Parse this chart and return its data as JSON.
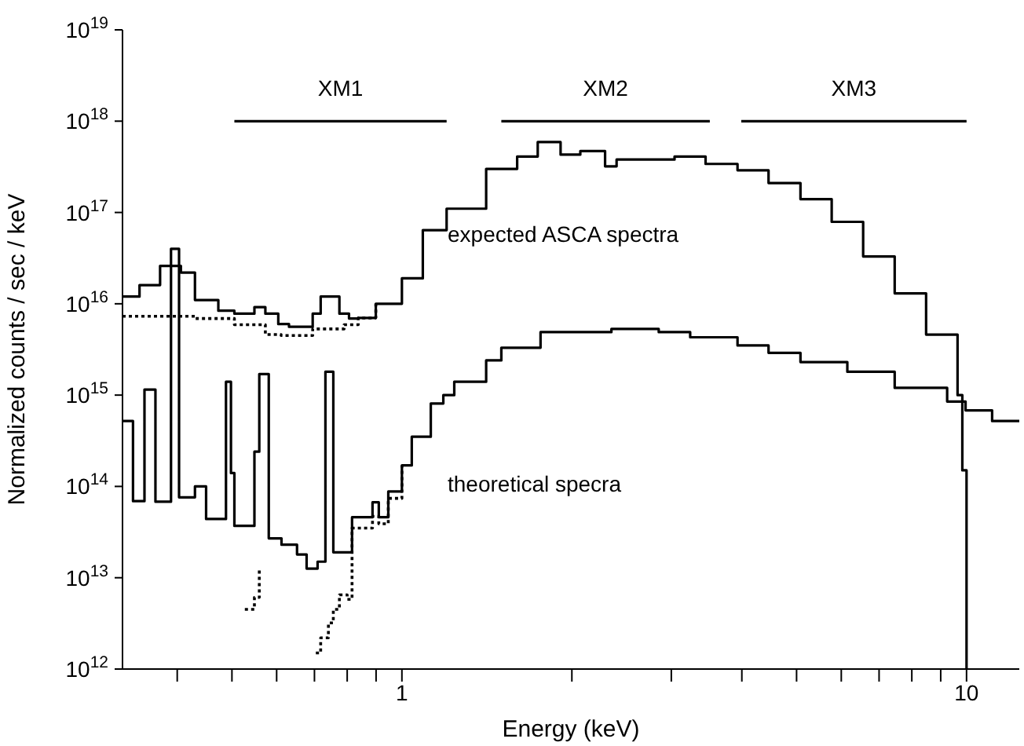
{
  "chart_data": {
    "type": "step",
    "xlabel": "Energy (keV)",
    "ylabel": "Normalized counts / sec / keV",
    "log": "xy",
    "marker": "none",
    "xlim": [
      0.32,
      12.4
    ],
    "ylim": [
      1000000000000.0,
      1e+19
    ],
    "xticks": [
      {
        "value": 0.4,
        "label": null
      },
      {
        "value": 0.5,
        "label": null
      },
      {
        "value": 0.6,
        "label": null
      },
      {
        "value": 0.7,
        "label": null
      },
      {
        "value": 0.8,
        "label": null
      },
      {
        "value": 0.9,
        "label": null
      },
      1,
      {
        "value": 2,
        "label": null
      },
      {
        "value": 3,
        "label": null
      },
      {
        "value": 4,
        "label": null
      },
      {
        "value": 5,
        "label": null
      },
      {
        "value": 6,
        "label": null
      },
      {
        "value": 7,
        "label": null
      },
      {
        "value": 8,
        "label": null
      },
      {
        "value": 9,
        "label": null
      },
      10
    ],
    "yticks": [
      {
        "value": 1000000000000.0,
        "label": "10$^{12}$"
      },
      {
        "value": 10000000000000.0,
        "label": "10$^{13}$"
      },
      {
        "value": 100000000000000.0,
        "label": "10$^{14}$"
      },
      {
        "value": 1000000000000000.0,
        "label": "10$^{15}$"
      },
      {
        "value": 1e+16,
        "label": "10$^{16}$"
      },
      {
        "value": 1e+17,
        "label": "10$^{17}$"
      },
      {
        "value": 1e+18,
        "label": "10$^{18}$"
      },
      {
        "value": 1e+19,
        "label": "10$^{19}$"
      }
    ],
    "series": [
      {
        "color": "#000000",
        "line_style": "solid",
        "x": [
          0.32,
          0.343,
          0.373,
          0.406,
          0.43,
          0.473,
          0.505,
          0.548,
          0.573,
          0.604,
          0.631,
          0.695,
          0.718,
          0.775,
          0.806,
          0.837,
          0.899,
          1.0,
          1.089,
          1.2,
          1.41,
          1.6,
          1.74,
          1.91,
          2.07,
          2.29,
          2.4,
          3.04,
          3.45,
          3.93,
          4.46,
          5.08,
          5.77,
          6.56,
          7.46,
          8.48,
          9.64,
          9.83,
          10
        ],
        "values": [
          1.2e+16,
          1.6e+16,
          2.6e+16,
          2.2e+16,
          1.1e+16,
          8400000000000000.0,
          7800000000000000.0,
          9200000000000000.0,
          7800000000000000.0,
          6000000000000000.0,
          5600000000000000.0,
          7800000000000000.0,
          1.2e+16,
          7800000000000000.0,
          6900000000000000.0,
          7000000000000000.0,
          1e+16,
          1.9e+16,
          6.4e+16,
          1.1e+17,
          3e+17,
          4.1e+17,
          5.9e+17,
          4.3e+17,
          4.7e+17,
          3.2e+17,
          3.8e+17,
          4.1e+17,
          3.4e+17,
          2.9e+17,
          2.1e+17,
          1.4e+17,
          7.9e+16,
          3.3e+16,
          1.3e+16,
          4600000000000000.0,
          1000000000000000.0,
          150000000000000.0,
          1000000000000.0
        ]
      },
      {
        "color": "#000000",
        "line_style": "dotted",
        "x": [
          0.32,
          0.43,
          0.505,
          0.573,
          0.611,
          0.695,
          0.79,
          0.837,
          0.899
        ],
        "values": [
          7300000000000000.0,
          6900000000000000.0,
          5900000000000000.0,
          4600000000000000.0,
          4500000000000000.0,
          5300000000000000.0,
          5900000000000000.0,
          7000000000000000.0,
          1e+16
        ]
      },
      {
        "color": "#000000",
        "line_style": "solid",
        "x": [
          0.32,
          0.334,
          0.35,
          0.366,
          0.39,
          0.403,
          0.43,
          0.45,
          0.488,
          0.498,
          0.505,
          0.548,
          0.559,
          0.581,
          0.612,
          0.652,
          0.678,
          0.709,
          0.732,
          0.756,
          0.816,
          0.887,
          0.91,
          0.946,
          1.0,
          1.041,
          1.125,
          1.184,
          1.238,
          1.41,
          1.5,
          1.76,
          2.35,
          2.85,
          3.24,
          3.93,
          4.46,
          5.08,
          6.15,
          7.46,
          9.24,
          9.96,
          11.1,
          12.4
        ],
        "values": [
          520000000000000.0,
          69000000000000.0,
          1150000000000000.0,
          68000000000000.0,
          4e+16,
          76000000000000.0,
          100000000000000.0,
          44000000000000.0,
          1400000000000000.0,
          140000000000000.0,
          37000000000000.0,
          240000000000000.0,
          1700000000000000.0,
          27000000000000.0,
          23000000000000.0,
          18000000000000.0,
          12600000000000.0,
          15000000000000.0,
          1800000000000000.0,
          19000000000000.0,
          46000000000000.0,
          67000000000000.0,
          46000000000000.0,
          88000000000000.0,
          170000000000000.0,
          350000000000000.0,
          810000000000000.0,
          1000000000000000.0,
          1400000000000000.0,
          2400000000000000.0,
          3300000000000000.0,
          4900000000000000.0,
          5300000000000000.0,
          4900000000000000.0,
          4300000000000000.0,
          3500000000000000.0,
          2900000000000000.0,
          2300000000000000.0,
          1800000000000000.0,
          1200000000000000.0,
          850000000000000.0,
          680000000000000.0,
          520000000000000.0,
          520000000000000.0
        ]
      },
      {
        "name": "XM1",
        "color": "#000000",
        "line_style": "solid",
        "x": [
          0.505,
          1.2
        ],
        "values": [
          1e+18,
          1e+18
        ]
      },
      {
        "name": "XM2",
        "color": "#000000",
        "line_style": "solid",
        "x": [
          1.5,
          3.51
        ],
        "values": [
          1e+18,
          1e+18
        ]
      },
      {
        "name": "XM3",
        "color": "#000000",
        "line_style": "solid",
        "x": [
          3.99,
          10
        ],
        "values": [
          1e+18,
          1e+18
        ]
      },
      {
        "color": "#000000",
        "line_style": "dotted",
        "x": [
          0.527,
          0.548,
          0.559,
          0.583,
          0.704,
          0.718,
          0.741,
          0.756,
          0.775,
          0.8,
          0.816,
          0.887,
          0.91,
          0.946,
          1.0
        ],
        "values": [
          4500000000000.0,
          6100000000000.0,
          12000000000000.0,
          null,
          1500000000000.0,
          2200000000000.0,
          3200000000000.0,
          4500000000000.0,
          6500000000000.0,
          5800000000000.0,
          35000000000000.0,
          47000000000000.0,
          39000000000000.0,
          74000000000000.0,
          170000000000000.0
        ]
      }
    ],
    "annotations": [
      "expected ASCA spectra",
      "theoretical specra"
    ]
  }
}
